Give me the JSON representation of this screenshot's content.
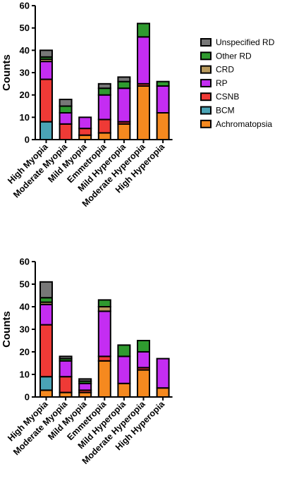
{
  "chart_data": [
    {
      "type": "bar",
      "stacked": true,
      "categories": [
        "High Myopia",
        "Moderate Myopia",
        "Mild Myopia",
        "Emmetropia",
        "Mild Hyperopia",
        "Moderate Hyperopia",
        "High Hyperopia"
      ],
      "ylabel": "Counts",
      "ylim": [
        0,
        60
      ],
      "yticks": [
        0,
        10,
        20,
        30,
        40,
        50,
        60
      ],
      "legend_position": "right",
      "series": [
        {
          "name": "Achromatopsia",
          "color": "#f5891f",
          "values": [
            0,
            0,
            2,
            3,
            7,
            24,
            12
          ]
        },
        {
          "name": "BCM",
          "color": "#4aa3b5",
          "values": [
            8,
            0,
            0,
            0,
            0,
            0,
            0
          ]
        },
        {
          "name": "CSNB",
          "color": "#ef3a36",
          "values": [
            19,
            7,
            3,
            6,
            1,
            1,
            0
          ]
        },
        {
          "name": "RP",
          "color": "#c42df2",
          "values": [
            8,
            5,
            5,
            11,
            15,
            21,
            12
          ]
        },
        {
          "name": "CRD",
          "color": "#b89a5c",
          "values": [
            1,
            0,
            0,
            0,
            0,
            0,
            0
          ]
        },
        {
          "name": "Other RD",
          "color": "#2f9a2f",
          "values": [
            1,
            3,
            0,
            3,
            3,
            6,
            2
          ]
        },
        {
          "name": "Unspecified RD",
          "color": "#777777",
          "values": [
            3,
            3,
            0,
            2,
            2,
            0,
            0
          ]
        }
      ]
    },
    {
      "type": "bar",
      "stacked": true,
      "categories": [
        "High Myopia",
        "Moderate Myopia",
        "Mild Myopia",
        "Emmetropia",
        "Mild Hyperopia",
        "Moderate Hyperopia",
        "High Hyperopia"
      ],
      "ylabel": "Counts",
      "ylim": [
        0,
        60
      ],
      "yticks": [
        0,
        10,
        20,
        30,
        40,
        50,
        60
      ],
      "series": [
        {
          "name": "Achromatopsia",
          "color": "#f5891f",
          "values": [
            3,
            2,
            2,
            16,
            6,
            12,
            4
          ]
        },
        {
          "name": "BCM",
          "color": "#4aa3b5",
          "values": [
            6,
            0,
            0,
            0,
            0,
            0,
            0
          ]
        },
        {
          "name": "CSNB",
          "color": "#ef3a36",
          "values": [
            23,
            7,
            1,
            2,
            0,
            1,
            0
          ]
        },
        {
          "name": "RP",
          "color": "#c42df2",
          "values": [
            9,
            7,
            3,
            20,
            12,
            7,
            13
          ]
        },
        {
          "name": "CRD",
          "color": "#b89a5c",
          "values": [
            1,
            0,
            0,
            2,
            0,
            0,
            0
          ]
        },
        {
          "name": "Other RD",
          "color": "#2f9a2f",
          "values": [
            2,
            1,
            1,
            3,
            5,
            5,
            0
          ]
        },
        {
          "name": "Unspecified RD",
          "color": "#777777",
          "values": [
            7,
            1,
            1,
            0,
            0,
            0,
            0
          ]
        }
      ]
    }
  ],
  "legend": {
    "items": [
      {
        "label": "Unspecified RD",
        "color": "#777777"
      },
      {
        "label": "Other RD",
        "color": "#2f9a2f"
      },
      {
        "label": "CRD",
        "color": "#b89a5c"
      },
      {
        "label": "RP",
        "color": "#c42df2"
      },
      {
        "label": "CSNB",
        "color": "#ef3a36"
      },
      {
        "label": "BCM",
        "color": "#4aa3b5"
      },
      {
        "label": "Achromatopsia",
        "color": "#f5891f"
      }
    ]
  }
}
